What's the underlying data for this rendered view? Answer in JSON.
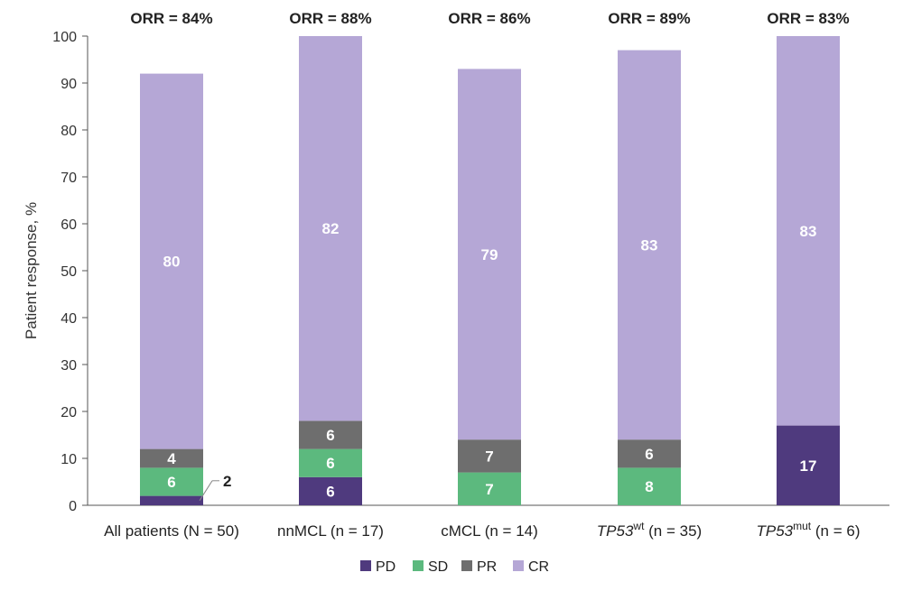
{
  "chart_data": {
    "type": "bar",
    "stacked": true,
    "ylabel": "Patient response, %",
    "ylim": [
      0,
      100
    ],
    "yticks": [
      0,
      10,
      20,
      30,
      40,
      50,
      60,
      70,
      80,
      90,
      100
    ],
    "grid": false,
    "legend_position": "bottom-center",
    "categories": [
      {
        "main": "All patients (N = 50)",
        "italic": "",
        "sup": "",
        "tail": ""
      },
      {
        "main": "nnMCL (n = 17)",
        "italic": "",
        "sup": "",
        "tail": ""
      },
      {
        "main": "cMCL (n = 14)",
        "italic": "",
        "sup": "",
        "tail": ""
      },
      {
        "main": "",
        "italic": "TP53",
        "sup": "wt",
        "tail": " (n = 35)"
      },
      {
        "main": "",
        "italic": "TP53",
        "sup": "mut",
        "tail": " (n = 6)"
      }
    ],
    "orr_labels": [
      "ORR = 84%",
      "ORR = 88%",
      "ORR = 86%",
      "ORR = 89%",
      "ORR = 83%"
    ],
    "series": [
      {
        "name": "PD",
        "color": "#4f3a7e",
        "values": [
          2,
          6,
          0,
          0,
          17
        ],
        "labels": [
          "2",
          "6",
          "",
          "",
          "17"
        ]
      },
      {
        "name": "SD",
        "color": "#5cb97e",
        "values": [
          6,
          6,
          7,
          8,
          0
        ],
        "labels": [
          "6",
          "6",
          "7",
          "8",
          ""
        ]
      },
      {
        "name": "PR",
        "color": "#6e6e6e",
        "values": [
          4,
          6,
          7,
          6,
          0
        ],
        "labels": [
          "4",
          "6",
          "7",
          "6",
          ""
        ]
      },
      {
        "name": "CR",
        "color": "#b5a7d6",
        "values": [
          80,
          82,
          79,
          83,
          83
        ],
        "labels": [
          "80",
          "82",
          "79",
          "83",
          "83"
        ]
      }
    ]
  }
}
